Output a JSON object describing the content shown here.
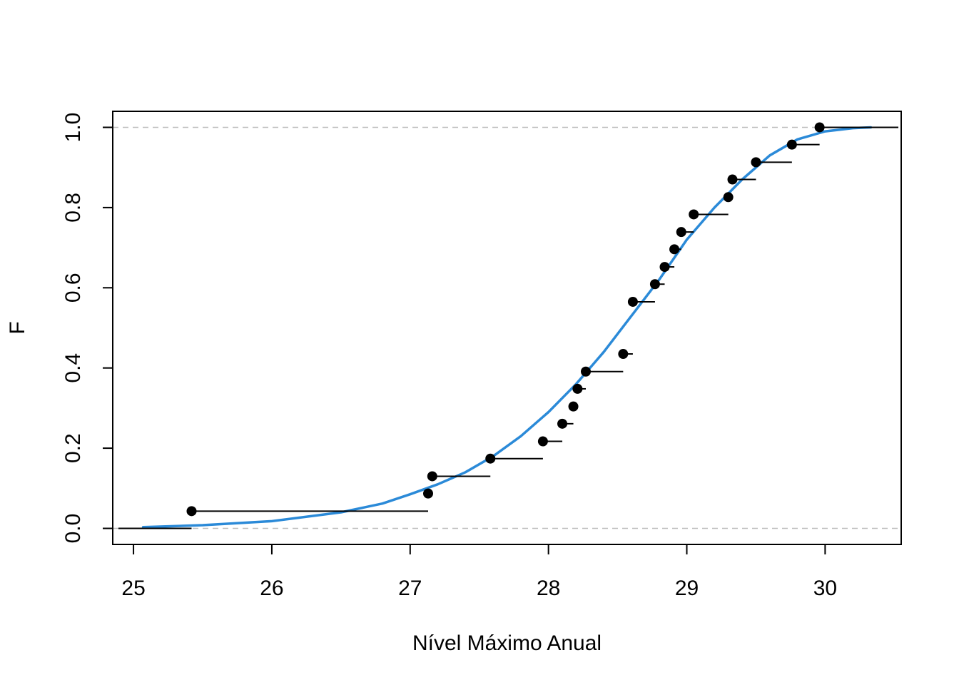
{
  "chart_data": {
    "type": "line",
    "title": "",
    "xlabel": "Nível Máximo Anual",
    "ylabel": "F",
    "xlim": [
      24.85,
      30.55
    ],
    "ylim": [
      -0.04,
      1.04
    ],
    "x_ticks": [
      25,
      26,
      27,
      28,
      29,
      30
    ],
    "y_ticks": [
      0.0,
      0.2,
      0.4,
      0.6,
      0.8,
      1.0
    ],
    "x_tick_labels": [
      "25",
      "26",
      "27",
      "28",
      "29",
      "30"
    ],
    "y_tick_labels": [
      "0.0",
      "0.2",
      "0.4",
      "0.6",
      "0.8",
      "1.0"
    ],
    "reference_lines": [
      0.0,
      1.0
    ],
    "grid": false,
    "legend": "none",
    "colors": {
      "ecdf": "#000000",
      "fitted_curve": "#2b8ad8",
      "reference": "#bebebe"
    },
    "series": [
      {
        "type": "ecdf-step",
        "x": [
          25.42,
          27.13,
          27.16,
          27.58,
          27.96,
          28.1,
          28.18,
          28.21,
          28.27,
          28.54,
          28.61,
          28.77,
          28.84,
          28.91,
          28.96,
          29.05,
          29.3,
          29.33,
          29.5,
          29.76,
          29.96
        ],
        "y": [
          0.043,
          0.087,
          0.13,
          0.174,
          0.217,
          0.261,
          0.304,
          0.348,
          0.391,
          0.435,
          0.565,
          0.609,
          0.652,
          0.696,
          0.739,
          0.783,
          0.826,
          0.87,
          0.913,
          0.957,
          1.0
        ]
      },
      {
        "type": "line",
        "x": [
          25.07,
          25.5,
          26.0,
          26.5,
          26.8,
          27.0,
          27.2,
          27.4,
          27.6,
          27.8,
          28.0,
          28.2,
          28.4,
          28.6,
          28.8,
          29.0,
          29.2,
          29.4,
          29.6,
          29.8,
          30.0,
          30.2,
          30.33
        ],
        "y": [
          0.003,
          0.008,
          0.018,
          0.04,
          0.062,
          0.085,
          0.11,
          0.14,
          0.18,
          0.23,
          0.29,
          0.36,
          0.44,
          0.53,
          0.62,
          0.72,
          0.8,
          0.87,
          0.93,
          0.97,
          0.99,
          0.998,
          1.0
        ]
      }
    ]
  }
}
